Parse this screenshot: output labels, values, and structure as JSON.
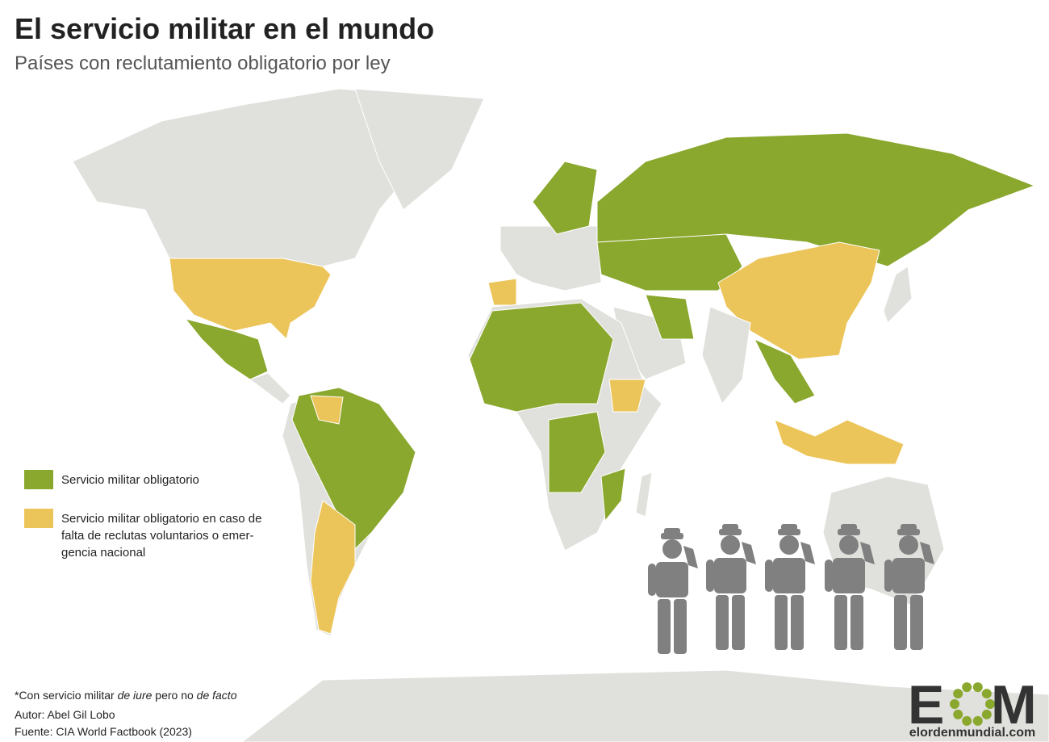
{
  "header": {
    "title": "El servicio militar en el mundo",
    "subtitle": "Países con reclutamiento obligatorio por ley"
  },
  "legend": [
    {
      "color": "#8aa72e",
      "lines": [
        "Servicio militar obligatorio"
      ]
    },
    {
      "color": "#ecc55a",
      "lines": [
        "Servicio militar obligatorio en caso de",
        "falta de reclutas voluntarios o emer-",
        "gencia nacional"
      ]
    }
  ],
  "footer": {
    "note": [
      {
        "text": "*Con servicio militar ",
        "italic": false
      },
      {
        "text": "de iure",
        "italic": true
      },
      {
        "text": " pero no ",
        "italic": false
      },
      {
        "text": "de facto",
        "italic": true
      }
    ],
    "author": "Autor: Abel Gil Lobo",
    "source": "Fuente: CIA World Factbook (2023)"
  },
  "logo": {
    "left": "E",
    "right": "M",
    "site": "elordenmundial.com"
  }
}
